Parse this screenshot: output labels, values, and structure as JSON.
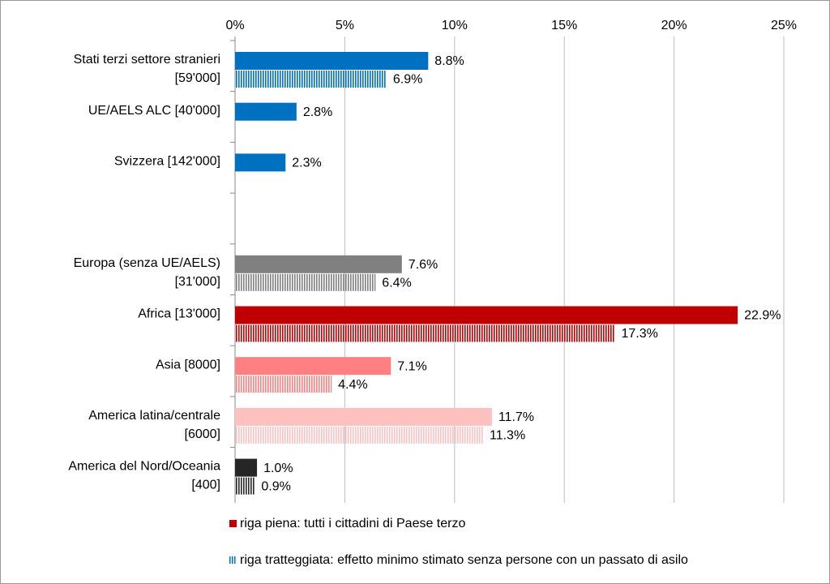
{
  "chart_data": {
    "type": "barh",
    "categories": [
      "Stati terzi settore stranieri\n[59'000]",
      "UE/AELS ALC [40'000]",
      "Svizzera [142'000]",
      null,
      "Europa (senza UE/AELS)\n[31'000]",
      "Africa [13'000]",
      "Asia [8000]",
      "America latina/centrale\n[6000]",
      "America del Nord/Oceania\n[400]"
    ],
    "series": [
      {
        "name": "riga piena: tutti i cittadini di Paese terzo",
        "style": "solid",
        "color": "#c00000",
        "colors": [
          "#0070c0",
          "#0070c0",
          "#0070c0",
          null,
          "#808080",
          "#c00000",
          "#ff8080",
          "#ffc0c0",
          "#262626"
        ],
        "values": [
          8.8,
          2.8,
          2.3,
          null,
          7.6,
          22.9,
          7.1,
          11.7,
          1.0
        ],
        "value_labels": [
          "8.8%",
          "2.8%",
          "2.3%",
          null,
          "7.6%",
          "22.9%",
          "7.1%",
          "11.7%",
          "1.0%"
        ]
      },
      {
        "name": "riga tratteggiata: effetto minimo stimato senza persone con un passato di asilo",
        "style": "hatched",
        "color": "#0070c0",
        "colors": [
          "#0070c0",
          null,
          null,
          null,
          "#808080",
          "#c00000",
          "#ff8080",
          "#ffc0c0",
          "#262626"
        ],
        "values": [
          6.9,
          null,
          null,
          null,
          6.4,
          17.3,
          4.4,
          11.3,
          0.9
        ],
        "value_labels": [
          "6.9%",
          null,
          null,
          null,
          "6.4%",
          "17.3%",
          "4.4%",
          "11.3%",
          "0.9%"
        ]
      }
    ],
    "xlim": [
      0,
      25
    ],
    "xticks": [
      {
        "value": 0,
        "label": "0%"
      },
      {
        "value": 5,
        "label": "5%"
      },
      {
        "value": 10,
        "label": "10%"
      },
      {
        "value": 15,
        "label": "15%"
      },
      {
        "value": 20,
        "label": "20%"
      },
      {
        "value": 25,
        "label": "25%"
      }
    ],
    "grid": true,
    "legend": "bottom"
  }
}
